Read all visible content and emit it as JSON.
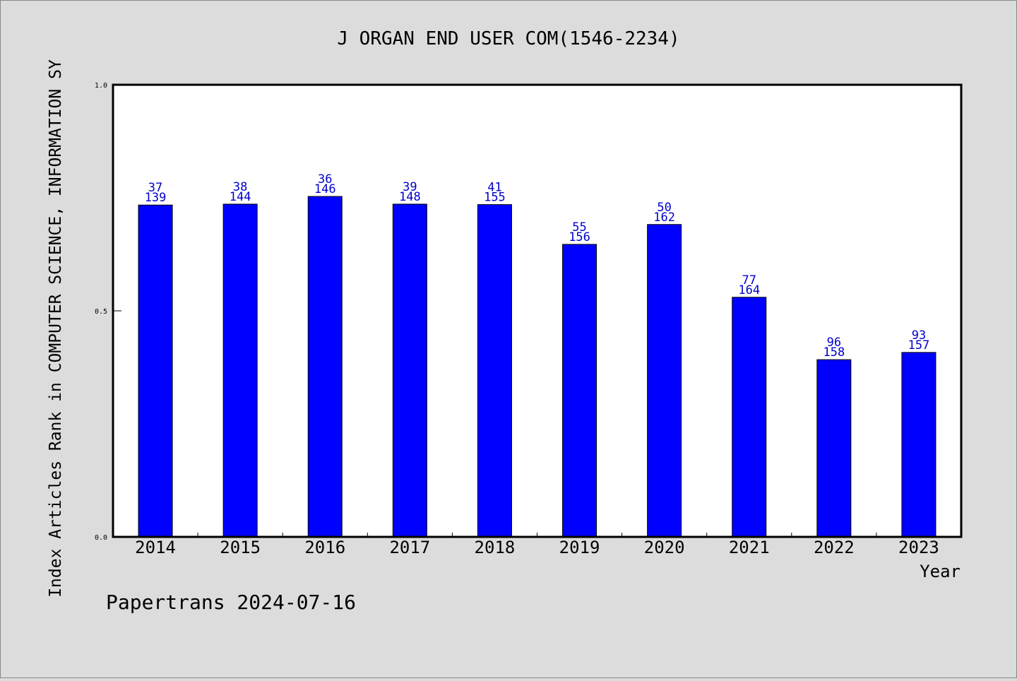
{
  "chart_data": {
    "type": "bar",
    "title": "J ORGAN END USER COM(1546-2234)",
    "xlabel": "Year",
    "ylabel": "Index Articles Rank in COMPUTER SCIENCE, INFORMATION SY",
    "footer": "Papertrans 2024-07-16",
    "ylim": [
      0,
      1.0
    ],
    "yticks": [
      "0.0",
      "0.5",
      "1.0"
    ],
    "ytick_values": [
      0,
      0.5,
      1.0
    ],
    "grid": false,
    "categories": [
      "2014",
      "2015",
      "2016",
      "2017",
      "2018",
      "2019",
      "2020",
      "2021",
      "2022",
      "2023"
    ],
    "values": [
      0.734,
      0.736,
      0.753,
      0.736,
      0.735,
      0.647,
      0.691,
      0.53,
      0.392,
      0.408
    ],
    "ranks": [
      "37",
      "38",
      "36",
      "39",
      "41",
      "55",
      "50",
      "77",
      "96",
      "93"
    ],
    "totals": [
      "139",
      "144",
      "146",
      "148",
      "155",
      "156",
      "162",
      "164",
      "158",
      "157"
    ],
    "colors": {
      "bar": "#0000ff",
      "label": "#0000cc",
      "axis": "#000000",
      "background": "#dcdcdc",
      "plot_background": "#ffffff"
    }
  }
}
